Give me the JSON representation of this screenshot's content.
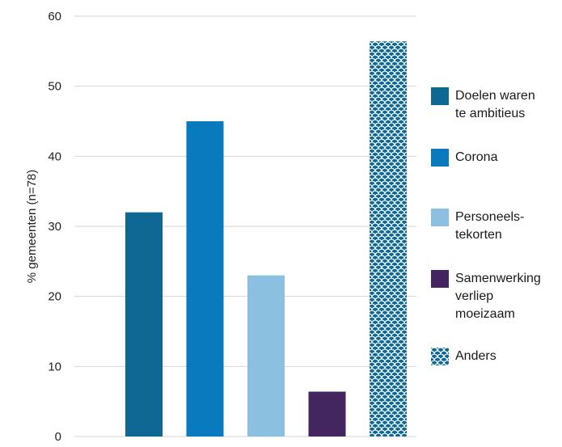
{
  "chart_data": {
    "type": "bar",
    "ylabel": "% gemeenten (n=78)",
    "xlabel": "",
    "ylim": [
      0,
      60
    ],
    "yticks": [
      0,
      10,
      20,
      30,
      40,
      50,
      60
    ],
    "grid": true,
    "legend_position": "right",
    "categories": [
      "Doelen waren te ambitieus",
      "Corona",
      "Personeelstekorten",
      "Samenwerking verliep moeizaam",
      "Anders"
    ],
    "values": [
      32,
      45,
      23,
      6.4,
      56.4
    ],
    "colors": [
      "#0e6893",
      "#0a7abf",
      "#8cc0e0",
      "#43265f",
      "#0e6893"
    ],
    "patterns": [
      "solid",
      "solid",
      "solid",
      "solid",
      "scales"
    ],
    "legend": [
      {
        "text": "Doelen waren\nte ambitieus"
      },
      {
        "text": "Corona"
      },
      {
        "text": "Personeels-\ntekorten"
      },
      {
        "text": "Samenwerking\nverliep\nmoeizaam"
      },
      {
        "text": "Anders"
      }
    ]
  }
}
